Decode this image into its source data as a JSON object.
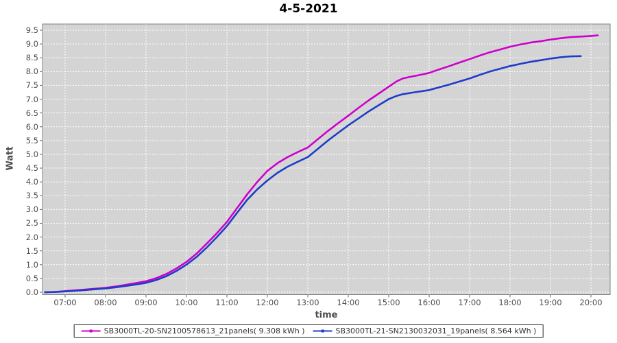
{
  "title": "4-5-2021",
  "axes": {
    "y_label": "Watt",
    "x_label": "time",
    "y_ticks": [
      "0.0",
      "0.5",
      "1.0",
      "1.5",
      "2.0",
      "2.5",
      "3.0",
      "3.5",
      "4.0",
      "4.5",
      "5.0",
      "5.5",
      "6.0",
      "6.5",
      "7.0",
      "7.5",
      "8.0",
      "8.5",
      "9.0",
      "9.5"
    ],
    "y_tick_values": [
      0,
      0.5,
      1,
      1.5,
      2,
      2.5,
      3,
      3.5,
      4,
      4.5,
      5,
      5.5,
      6,
      6.5,
      7,
      7.5,
      8,
      8.5,
      9,
      9.5
    ],
    "x_ticks": [
      "07:00",
      "08:00",
      "09:00",
      "10:00",
      "11:00",
      "12:00",
      "13:00",
      "14:00",
      "15:00",
      "16:00",
      "17:00",
      "18:00",
      "19:00",
      "20:00"
    ],
    "x_tick_values": [
      7,
      8,
      9,
      10,
      11,
      12,
      13,
      14,
      15,
      16,
      17,
      18,
      19,
      20
    ]
  },
  "legend": {
    "items": [
      {
        "label": "SB3000TL-20-SN2100578613_21panels( 9.308 kWh )",
        "color": "#CC00CC"
      },
      {
        "label": "SB3000TL-21-SN2130032031_19panels( 8.564 kWh )",
        "color": "#1E3CC8"
      }
    ]
  },
  "colors": {
    "series1": "#CC00CC",
    "series2": "#1E3CC8",
    "plot_bg": "#D4D4D4",
    "grid": "#FFFFFF",
    "plot_border": "#808080",
    "axis_text": "#4D4D4D",
    "tick": "#666666",
    "legend_border": "#222222",
    "title_text": "#000000"
  },
  "chart_data": {
    "type": "line",
    "title": "4-5-2021",
    "xlabel": "time",
    "ylabel": "Watt",
    "x_unit": "hour of day (decimal)",
    "xlim": [
      6.44,
      20.47
    ],
    "ylim": [
      0,
      9.75
    ],
    "grid": true,
    "grid_style": "white dashed on gray panel",
    "legend_position": "bottom",
    "series": [
      {
        "name": "SB3000TL-20-SN2100578613_21panels( 9.308 kWh )",
        "color": "#CC00CC",
        "total_kwh": 9.308,
        "points": [
          [
            6.5,
            0.0
          ],
          [
            6.75,
            0.01
          ],
          [
            7.0,
            0.04
          ],
          [
            7.25,
            0.07
          ],
          [
            7.5,
            0.1
          ],
          [
            7.75,
            0.13
          ],
          [
            8.0,
            0.16
          ],
          [
            8.25,
            0.21
          ],
          [
            8.5,
            0.27
          ],
          [
            8.75,
            0.33
          ],
          [
            9.0,
            0.4
          ],
          [
            9.25,
            0.51
          ],
          [
            9.5,
            0.66
          ],
          [
            9.75,
            0.86
          ],
          [
            10.0,
            1.1
          ],
          [
            10.25,
            1.4
          ],
          [
            10.5,
            1.76
          ],
          [
            10.75,
            2.14
          ],
          [
            11.0,
            2.55
          ],
          [
            11.25,
            3.05
          ],
          [
            11.5,
            3.55
          ],
          [
            11.75,
            4.0
          ],
          [
            12.0,
            4.4
          ],
          [
            12.25,
            4.68
          ],
          [
            12.5,
            4.9
          ],
          [
            12.75,
            5.08
          ],
          [
            13.0,
            5.25
          ],
          [
            13.25,
            5.55
          ],
          [
            13.5,
            5.85
          ],
          [
            13.75,
            6.13
          ],
          [
            14.0,
            6.4
          ],
          [
            14.25,
            6.68
          ],
          [
            14.5,
            6.95
          ],
          [
            14.75,
            7.2
          ],
          [
            15.0,
            7.45
          ],
          [
            15.2,
            7.65
          ],
          [
            15.35,
            7.75
          ],
          [
            15.5,
            7.8
          ],
          [
            15.75,
            7.87
          ],
          [
            16.0,
            7.95
          ],
          [
            16.25,
            8.08
          ],
          [
            16.5,
            8.2
          ],
          [
            16.75,
            8.33
          ],
          [
            17.0,
            8.45
          ],
          [
            17.25,
            8.58
          ],
          [
            17.5,
            8.7
          ],
          [
            17.75,
            8.8
          ],
          [
            18.0,
            8.9
          ],
          [
            18.25,
            8.98
          ],
          [
            18.5,
            9.05
          ],
          [
            18.75,
            9.1
          ],
          [
            19.0,
            9.16
          ],
          [
            19.25,
            9.21
          ],
          [
            19.5,
            9.25
          ],
          [
            19.75,
            9.27
          ],
          [
            20.0,
            9.29
          ],
          [
            20.17,
            9.31
          ]
        ]
      },
      {
        "name": "SB3000TL-21-SN2130032031_19panels( 8.564 kWh )",
        "color": "#1E3CC8",
        "total_kwh": 8.564,
        "points": [
          [
            6.5,
            0.0
          ],
          [
            6.75,
            0.01
          ],
          [
            7.0,
            0.03
          ],
          [
            7.25,
            0.05
          ],
          [
            7.5,
            0.08
          ],
          [
            7.75,
            0.11
          ],
          [
            8.0,
            0.14
          ],
          [
            8.25,
            0.18
          ],
          [
            8.5,
            0.23
          ],
          [
            8.75,
            0.28
          ],
          [
            9.0,
            0.34
          ],
          [
            9.25,
            0.44
          ],
          [
            9.5,
            0.58
          ],
          [
            9.75,
            0.77
          ],
          [
            10.0,
            1.0
          ],
          [
            10.25,
            1.28
          ],
          [
            10.5,
            1.62
          ],
          [
            10.75,
            2.0
          ],
          [
            11.0,
            2.4
          ],
          [
            11.25,
            2.88
          ],
          [
            11.5,
            3.35
          ],
          [
            11.75,
            3.73
          ],
          [
            12.0,
            4.05
          ],
          [
            12.25,
            4.33
          ],
          [
            12.5,
            4.55
          ],
          [
            12.75,
            4.73
          ],
          [
            13.0,
            4.9
          ],
          [
            13.25,
            5.2
          ],
          [
            13.5,
            5.5
          ],
          [
            13.75,
            5.78
          ],
          [
            14.0,
            6.05
          ],
          [
            14.25,
            6.3
          ],
          [
            14.5,
            6.55
          ],
          [
            14.75,
            6.78
          ],
          [
            15.0,
            7.0
          ],
          [
            15.2,
            7.12
          ],
          [
            15.35,
            7.18
          ],
          [
            15.6,
            7.24
          ],
          [
            16.0,
            7.33
          ],
          [
            16.25,
            7.43
          ],
          [
            16.5,
            7.53
          ],
          [
            16.75,
            7.64
          ],
          [
            17.0,
            7.75
          ],
          [
            17.25,
            7.88
          ],
          [
            17.5,
            8.0
          ],
          [
            17.75,
            8.1
          ],
          [
            18.0,
            8.2
          ],
          [
            18.25,
            8.28
          ],
          [
            18.5,
            8.35
          ],
          [
            18.75,
            8.41
          ],
          [
            19.0,
            8.47
          ],
          [
            19.25,
            8.52
          ],
          [
            19.5,
            8.55
          ],
          [
            19.75,
            8.56
          ]
        ]
      }
    ]
  }
}
